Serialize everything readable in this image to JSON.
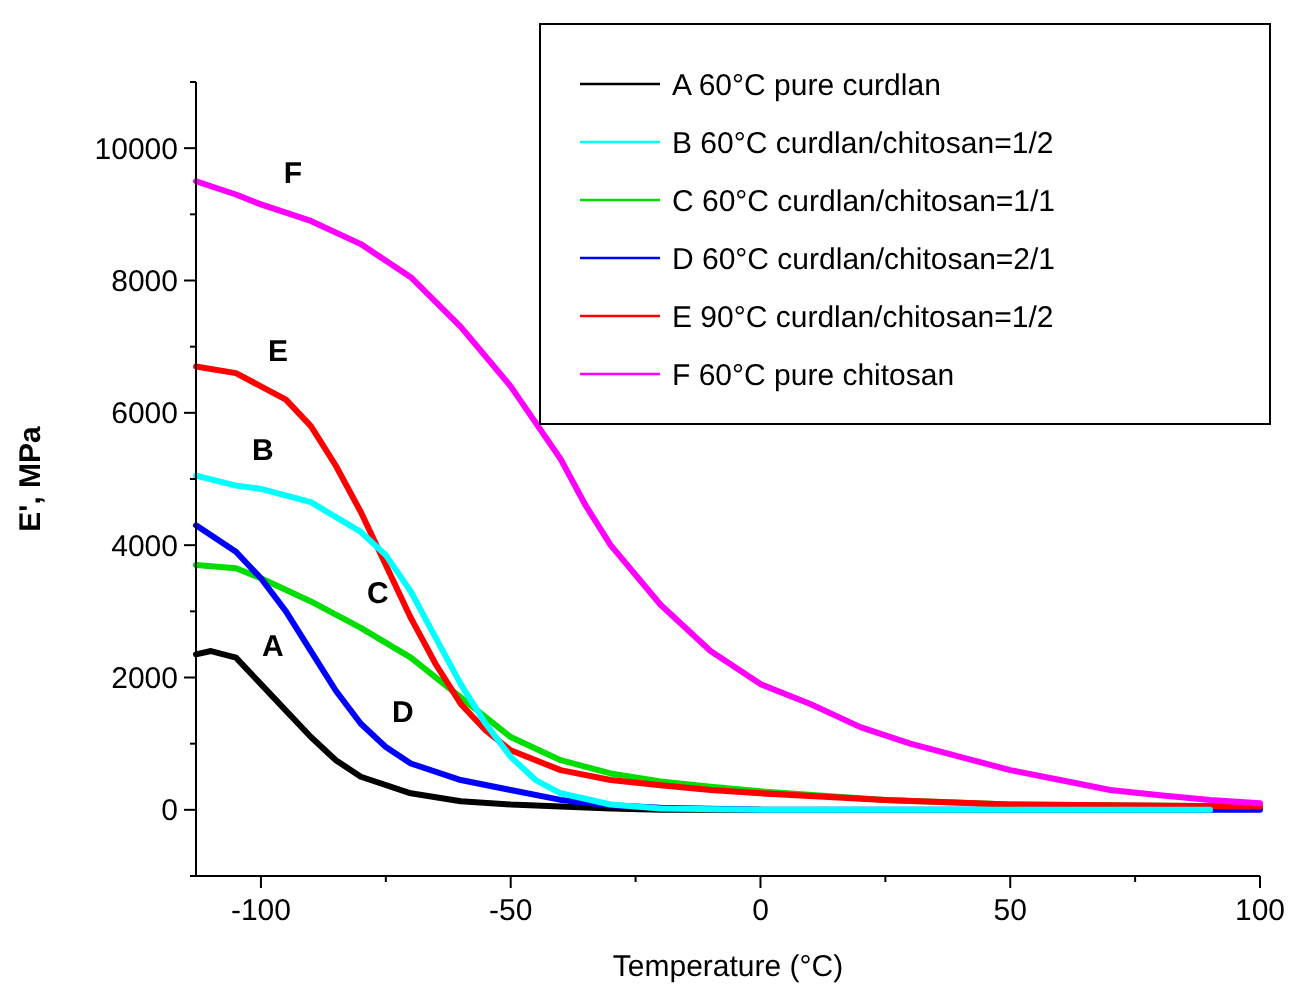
{
  "chart_data": {
    "type": "line",
    "xlabel": "Temperature (°C)",
    "ylabel": "E', MPa",
    "xlim": [
      -113,
      100
    ],
    "ylim": [
      -1000,
      11000
    ],
    "xticks": [
      {
        "value": -100,
        "label": "-100"
      },
      {
        "value": -75,
        "label": null
      },
      {
        "value": -50,
        "label": "-50"
      },
      {
        "value": -25,
        "label": null
      },
      0,
      {
        "value": 25,
        "label": null
      },
      50,
      {
        "value": 75,
        "label": null
      },
      100
    ],
    "yticks": [
      {
        "value": -1000,
        "label": null
      },
      0,
      {
        "value": 1000,
        "label": null
      },
      2000,
      {
        "value": 3000,
        "label": null
      },
      4000,
      {
        "value": 5000,
        "label": null
      },
      6000,
      {
        "value": 7000,
        "label": null
      },
      8000,
      {
        "value": 9000,
        "label": null
      },
      10000,
      {
        "value": 11000,
        "label": null
      }
    ],
    "legend": "top right",
    "grid": false,
    "marker": "none",
    "line_style": "solid",
    "series": [
      {
        "name": "A 60°C pure curdlan",
        "color": "#000000",
        "x": [
          -113,
          -110,
          -105,
          -100,
          -95,
          -90,
          -85,
          -80,
          -70,
          -60,
          -50,
          -40,
          -30,
          -20,
          0
        ],
        "values": [
          2350,
          2400,
          2300,
          1900,
          1500,
          1100,
          750,
          500,
          250,
          130,
          80,
          50,
          20,
          0,
          0
        ]
      },
      {
        "name": "B 60°C curdlan/chitosan=1/2",
        "color": "#00ffff",
        "x": [
          -113,
          -105,
          -100,
          -90,
          -80,
          -75,
          -70,
          -65,
          -60,
          -55,
          -50,
          -45,
          -40,
          -30,
          -20,
          0,
          50,
          90
        ],
        "values": [
          5050,
          4900,
          4850,
          4650,
          4200,
          3850,
          3300,
          2600,
          1900,
          1300,
          800,
          450,
          250,
          80,
          20,
          0,
          0,
          0
        ]
      },
      {
        "name": "C 60°C curdlan/chitosan=1/1",
        "color": "#00dd00",
        "x": [
          -113,
          -105,
          -100,
          -90,
          -80,
          -70,
          -60,
          -50,
          -40,
          -30,
          -20,
          -10,
          0,
          25,
          50,
          100
        ],
        "values": [
          3700,
          3650,
          3500,
          3150,
          2750,
          2300,
          1700,
          1100,
          750,
          550,
          430,
          350,
          280,
          150,
          80,
          50
        ]
      },
      {
        "name": "D 60°C curdlan/chitosan=2/1",
        "color": "#0000ff",
        "x": [
          -113,
          -105,
          -100,
          -95,
          -90,
          -85,
          -80,
          -75,
          -70,
          -60,
          -50,
          -40,
          -30,
          -20,
          0,
          50,
          100
        ],
        "values": [
          4300,
          3900,
          3500,
          3000,
          2400,
          1800,
          1300,
          950,
          700,
          450,
          300,
          150,
          70,
          30,
          0,
          0,
          0
        ]
      },
      {
        "name": "E 90°C curdlan/chitosan=1/2",
        "color": "#ff0000",
        "x": [
          -113,
          -105,
          -100,
          -95,
          -90,
          -85,
          -80,
          -75,
          -70,
          -65,
          -60,
          -55,
          -50,
          -40,
          -30,
          -20,
          -10,
          0,
          25,
          50,
          100
        ],
        "values": [
          6700,
          6600,
          6400,
          6200,
          5800,
          5200,
          4500,
          3700,
          2900,
          2200,
          1600,
          1200,
          900,
          600,
          450,
          370,
          300,
          250,
          150,
          80,
          50
        ]
      },
      {
        "name": "F 60°C pure chitosan",
        "color": "#ff00ff",
        "x": [
          -113,
          -105,
          -100,
          -90,
          -80,
          -70,
          -60,
          -50,
          -40,
          -35,
          -30,
          -20,
          -10,
          0,
          10,
          20,
          30,
          40,
          50,
          60,
          70,
          80,
          90,
          100
        ],
        "values": [
          9500,
          9300,
          9150,
          8900,
          8550,
          8050,
          7300,
          6400,
          5300,
          4600,
          4000,
          3100,
          2400,
          1900,
          1600,
          1250,
          1000,
          800,
          600,
          450,
          300,
          220,
          150,
          100
        ]
      }
    ],
    "annotations": [
      {
        "text": "A",
        "x": -100,
        "y": 1900
      },
      {
        "text": "B",
        "x": -102,
        "y": 4870
      },
      {
        "text": "C",
        "x": -79,
        "y": 2700
      },
      {
        "text": "D",
        "x": -74,
        "y": 900
      },
      {
        "text": "E",
        "x": -99,
        "y": 6360
      },
      {
        "text": "F",
        "x": -96,
        "y": 9050
      }
    ]
  }
}
